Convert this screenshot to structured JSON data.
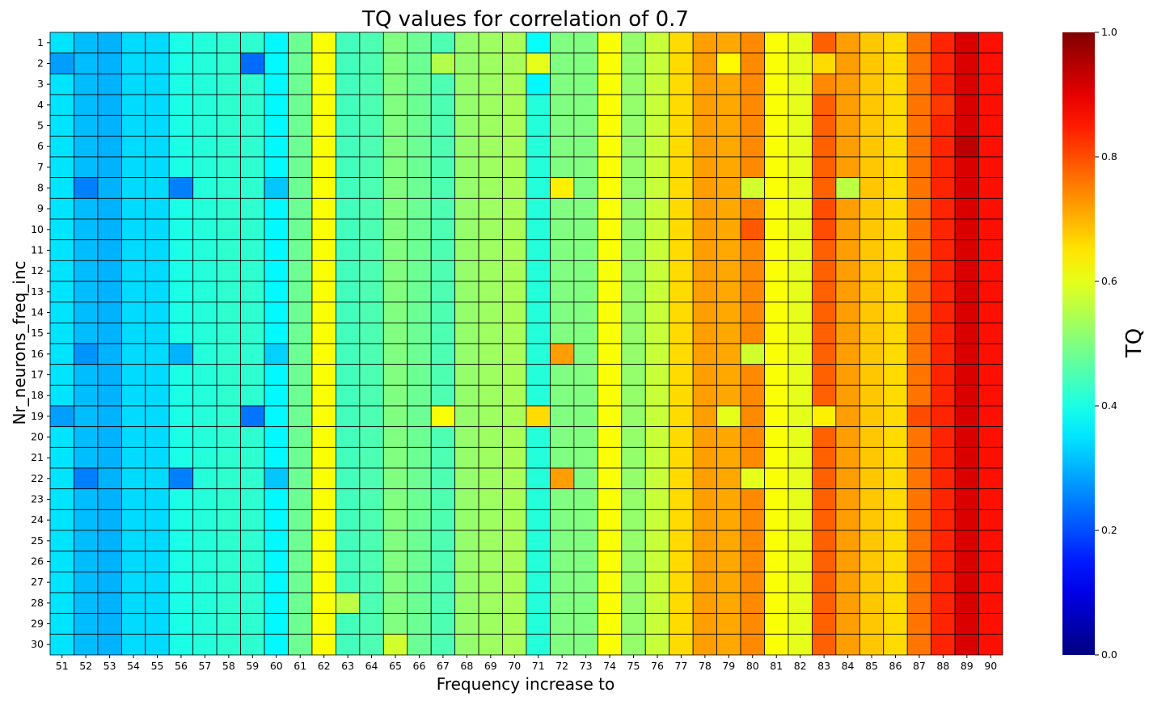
{
  "chart_data": {
    "type": "heatmap",
    "title": "TQ values for correlation of 0.7",
    "xlabel": "Frequency increase to",
    "ylabel": "Nr_neurons_freq_inc",
    "colorbar_label": "TQ",
    "colormap": "jet",
    "value_range": [
      0,
      1
    ],
    "colorbar_ticks": [
      "0.0",
      "0.2",
      "0.4",
      "0.6",
      "0.8",
      "1.0"
    ],
    "x_categories": [
      "51",
      "52",
      "53",
      "54",
      "55",
      "56",
      "57",
      "58",
      "59",
      "60",
      "61",
      "62",
      "63",
      "64",
      "65",
      "66",
      "67",
      "68",
      "69",
      "70",
      "71",
      "72",
      "73",
      "74",
      "75",
      "76",
      "77",
      "78",
      "79",
      "80",
      "81",
      "82",
      "83",
      "84",
      "85",
      "86",
      "87",
      "88",
      "89",
      "90"
    ],
    "y_categories": [
      "1",
      "2",
      "3",
      "4",
      "5",
      "6",
      "7",
      "8",
      "9",
      "10",
      "11",
      "12",
      "13",
      "14",
      "15",
      "16",
      "17",
      "18",
      "19",
      "20",
      "21",
      "22",
      "23",
      "24",
      "25",
      "26",
      "27",
      "28",
      "29",
      "30"
    ],
    "column_base": [
      0.35,
      0.31,
      0.3,
      0.34,
      0.34,
      0.4,
      0.41,
      0.42,
      0.42,
      0.37,
      0.48,
      0.62,
      0.44,
      0.45,
      0.5,
      0.48,
      0.45,
      0.52,
      0.53,
      0.54,
      0.41,
      0.5,
      0.5,
      0.62,
      0.52,
      0.57,
      0.66,
      0.72,
      0.71,
      0.74,
      0.62,
      0.6,
      0.78,
      0.72,
      0.68,
      0.66,
      0.76,
      0.84,
      0.91,
      0.86
    ],
    "overrides": [
      {
        "row": "2",
        "col": "51",
        "value": 0.28
      },
      {
        "row": "2",
        "col": "59",
        "value": 0.23
      },
      {
        "row": "2",
        "col": "67",
        "value": 0.55
      },
      {
        "row": "2",
        "col": "71",
        "value": 0.6
      },
      {
        "row": "2",
        "col": "81",
        "value": 0.62
      },
      {
        "row": "2",
        "col": "79",
        "value": 0.63
      },
      {
        "row": "2",
        "col": "83",
        "value": 0.66
      },
      {
        "row": "1",
        "col": "71",
        "value": 0.38
      },
      {
        "row": "3",
        "col": "71",
        "value": 0.37
      },
      {
        "row": "3",
        "col": "83",
        "value": 0.74
      },
      {
        "row": "4",
        "col": "88",
        "value": 0.82
      },
      {
        "row": "6",
        "col": "89",
        "value": 0.94
      },
      {
        "row": "8",
        "col": "52",
        "value": 0.25
      },
      {
        "row": "8",
        "col": "56",
        "value": 0.25
      },
      {
        "row": "8",
        "col": "60",
        "value": 0.32
      },
      {
        "row": "8",
        "col": "72",
        "value": 0.64
      },
      {
        "row": "8",
        "col": "80",
        "value": 0.58
      },
      {
        "row": "8",
        "col": "84",
        "value": 0.56
      },
      {
        "row": "9",
        "col": "83",
        "value": 0.8
      },
      {
        "row": "10",
        "col": "80",
        "value": 0.79
      },
      {
        "row": "10",
        "col": "83",
        "value": 0.8
      },
      {
        "row": "16",
        "col": "52",
        "value": 0.27
      },
      {
        "row": "16",
        "col": "56",
        "value": 0.3
      },
      {
        "row": "16",
        "col": "60",
        "value": 0.33
      },
      {
        "row": "16",
        "col": "72",
        "value": 0.72
      },
      {
        "row": "16",
        "col": "80",
        "value": 0.58
      },
      {
        "row": "19",
        "col": "51",
        "value": 0.28
      },
      {
        "row": "19",
        "col": "59",
        "value": 0.24
      },
      {
        "row": "19",
        "col": "67",
        "value": 0.62
      },
      {
        "row": "19",
        "col": "71",
        "value": 0.66
      },
      {
        "row": "19",
        "col": "79",
        "value": 0.6
      },
      {
        "row": "19",
        "col": "83",
        "value": 0.64
      },
      {
        "row": "19",
        "col": "87",
        "value": 0.8
      },
      {
        "row": "22",
        "col": "52",
        "value": 0.25
      },
      {
        "row": "22",
        "col": "56",
        "value": 0.25
      },
      {
        "row": "22",
        "col": "60",
        "value": 0.32
      },
      {
        "row": "22",
        "col": "72",
        "value": 0.72
      },
      {
        "row": "22",
        "col": "80",
        "value": 0.6
      },
      {
        "row": "28",
        "col": "63",
        "value": 0.56
      },
      {
        "row": "30",
        "col": "65",
        "value": 0.58
      }
    ]
  }
}
